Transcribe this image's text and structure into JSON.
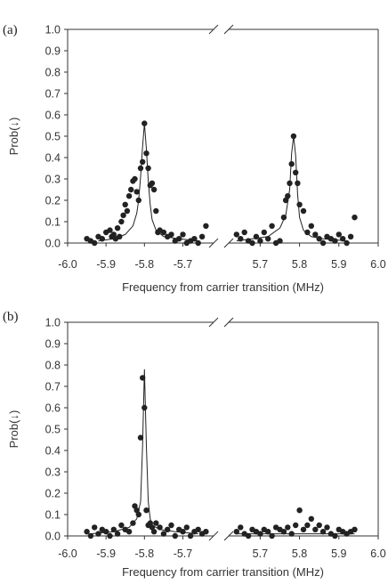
{
  "chart_data": [
    {
      "type": "scatter",
      "panel_label": "(a)",
      "ylabel": "Prob(↓)",
      "xlabel": "Frequency from carrier transition (MHz)",
      "ylim": [
        0,
        1.0
      ],
      "y_ticks": [
        "0.0",
        "0.1",
        "0.2",
        "0.3",
        "0.4",
        "0.5",
        "0.6",
        "0.7",
        "0.8",
        "0.9",
        "1.0"
      ],
      "x_ticks": [
        "-6.0",
        "-5.9",
        "-5.8",
        "-5.7",
        "5.7",
        "5.8",
        "5.9",
        "6.0"
      ],
      "broken_x_axis": true,
      "x_segments": [
        [
          -6.0,
          -5.62
        ],
        [
          5.62,
          6.0
        ]
      ],
      "grid": false,
      "series": [
        {
          "kind": "points",
          "x": [
            -5.95,
            -5.94,
            -5.93,
            -5.92,
            -5.91,
            -5.9,
            -5.89,
            -5.885,
            -5.88,
            -5.875,
            -5.87,
            -5.865,
            -5.86,
            -5.855,
            -5.85,
            -5.845,
            -5.84,
            -5.835,
            -5.83,
            -5.825,
            -5.82,
            -5.815,
            -5.81,
            -5.805,
            -5.8,
            -5.795,
            -5.79,
            -5.785,
            -5.78,
            -5.775,
            -5.77,
            -5.765,
            -5.76,
            -5.75,
            -5.74,
            -5.73,
            -5.72,
            -5.71,
            -5.7,
            -5.69,
            -5.68,
            -5.67,
            -5.66,
            -5.65,
            -5.64,
            5.64,
            5.65,
            5.66,
            5.67,
            5.68,
            5.69,
            5.7,
            5.71,
            5.72,
            5.73,
            5.74,
            5.75,
            5.76,
            5.765,
            5.77,
            5.775,
            5.78,
            5.785,
            5.79,
            5.795,
            5.8,
            5.81,
            5.82,
            5.83,
            5.84,
            5.85,
            5.86,
            5.87,
            5.88,
            5.89,
            5.9,
            5.91,
            5.92,
            5.93,
            5.94
          ],
          "y": [
            0.02,
            0.01,
            0.0,
            0.03,
            0.02,
            0.05,
            0.06,
            0.03,
            0.04,
            0.02,
            0.07,
            0.03,
            0.1,
            0.13,
            0.18,
            0.15,
            0.22,
            0.25,
            0.29,
            0.3,
            0.24,
            0.2,
            0.35,
            0.38,
            0.56,
            0.42,
            0.35,
            0.27,
            0.28,
            0.25,
            0.15,
            0.05,
            0.06,
            0.05,
            0.03,
            0.04,
            0.01,
            0.02,
            0.04,
            0.0,
            0.01,
            0.02,
            0.0,
            0.03,
            0.08,
            0.04,
            0.02,
            0.05,
            0.01,
            0.0,
            0.03,
            0.01,
            0.05,
            0.02,
            0.08,
            0.0,
            0.01,
            0.12,
            0.2,
            0.22,
            0.28,
            0.37,
            0.5,
            0.33,
            0.28,
            0.18,
            0.15,
            0.05,
            0.08,
            0.04,
            0.02,
            0.0,
            0.03,
            0.02,
            0.01,
            0.04,
            0.02,
            0.0,
            0.03,
            0.12
          ]
        },
        {
          "kind": "line",
          "x": [
            -5.92,
            -5.88,
            -5.85,
            -5.83,
            -5.82,
            -5.815,
            -5.81,
            -5.805,
            -5.8,
            -5.795,
            -5.79,
            -5.785,
            -5.78,
            -5.77,
            -5.75,
            -5.71,
            -5.66,
            5.64,
            5.68,
            5.72,
            5.75,
            5.765,
            5.775,
            5.78,
            5.785,
            5.79,
            5.795,
            5.8,
            5.81,
            5.83,
            5.86,
            5.92
          ],
          "y": [
            0.01,
            0.02,
            0.04,
            0.08,
            0.14,
            0.2,
            0.31,
            0.45,
            0.56,
            0.44,
            0.29,
            0.18,
            0.11,
            0.06,
            0.03,
            0.02,
            0.01,
            0.01,
            0.02,
            0.03,
            0.07,
            0.13,
            0.25,
            0.42,
            0.5,
            0.41,
            0.23,
            0.12,
            0.06,
            0.03,
            0.02,
            0.01
          ]
        }
      ]
    },
    {
      "type": "scatter",
      "panel_label": "(b)",
      "ylabel": "Prob(↓)",
      "xlabel": "Frequency from carrier transition (MHz)",
      "ylim": [
        0,
        1.0
      ],
      "y_ticks": [
        "0.0",
        "0.1",
        "0.2",
        "0.3",
        "0.4",
        "0.5",
        "0.6",
        "0.7",
        "0.8",
        "0.9",
        "1.0"
      ],
      "x_ticks": [
        "-6.0",
        "-5.9",
        "-5.8",
        "-5.7",
        "5.7",
        "5.8",
        "5.9",
        "6.0"
      ],
      "broken_x_axis": true,
      "x_segments": [
        [
          -6.0,
          -5.62
        ],
        [
          5.62,
          6.0
        ]
      ],
      "grid": false,
      "series": [
        {
          "kind": "points",
          "x": [
            -5.95,
            -5.94,
            -5.93,
            -5.92,
            -5.91,
            -5.9,
            -5.89,
            -5.88,
            -5.87,
            -5.86,
            -5.85,
            -5.84,
            -5.83,
            -5.825,
            -5.82,
            -5.815,
            -5.81,
            -5.805,
            -5.8,
            -5.795,
            -5.79,
            -5.785,
            -5.78,
            -5.775,
            -5.77,
            -5.76,
            -5.75,
            -5.74,
            -5.73,
            -5.72,
            -5.71,
            -5.7,
            -5.69,
            -5.68,
            -5.67,
            -5.66,
            -5.65,
            -5.64,
            5.64,
            5.65,
            5.66,
            5.67,
            5.68,
            5.69,
            5.7,
            5.71,
            5.72,
            5.73,
            5.74,
            5.75,
            5.76,
            5.77,
            5.78,
            5.79,
            5.8,
            5.81,
            5.82,
            5.83,
            5.84,
            5.85,
            5.86,
            5.87,
            5.88,
            5.89,
            5.9,
            5.91,
            5.92,
            5.93,
            5.94
          ],
          "y": [
            0.02,
            0.0,
            0.04,
            0.01,
            0.03,
            0.02,
            0.0,
            0.03,
            0.01,
            0.05,
            0.03,
            0.02,
            0.06,
            0.14,
            0.12,
            0.1,
            0.46,
            0.74,
            0.6,
            0.12,
            0.05,
            0.06,
            0.04,
            0.02,
            0.06,
            0.04,
            0.01,
            0.03,
            0.05,
            0.0,
            0.03,
            0.02,
            0.04,
            0.0,
            0.02,
            0.03,
            0.01,
            0.02,
            0.02,
            0.04,
            0.01,
            0.0,
            0.03,
            0.02,
            0.01,
            0.03,
            0.02,
            0.0,
            0.04,
            0.03,
            0.02,
            0.04,
            0.01,
            0.05,
            0.12,
            0.03,
            0.05,
            0.08,
            0.03,
            0.05,
            0.02,
            0.04,
            0.01,
            0.0,
            0.03,
            0.02,
            0.01,
            0.02,
            0.03
          ]
        },
        {
          "kind": "line",
          "x": [
            -5.94,
            -5.88,
            -5.84,
            -5.82,
            -5.81,
            -5.805,
            -5.8,
            -5.795,
            -5.79,
            -5.785,
            -5.78,
            -5.76,
            -5.72,
            -5.66,
            5.64,
            5.7,
            5.76,
            5.8,
            5.86,
            5.94
          ],
          "y": [
            0.01,
            0.02,
            0.04,
            0.08,
            0.16,
            0.42,
            0.78,
            0.42,
            0.16,
            0.08,
            0.05,
            0.03,
            0.02,
            0.01,
            0.01,
            0.01,
            0.01,
            0.01,
            0.01,
            0.01
          ]
        }
      ]
    }
  ]
}
